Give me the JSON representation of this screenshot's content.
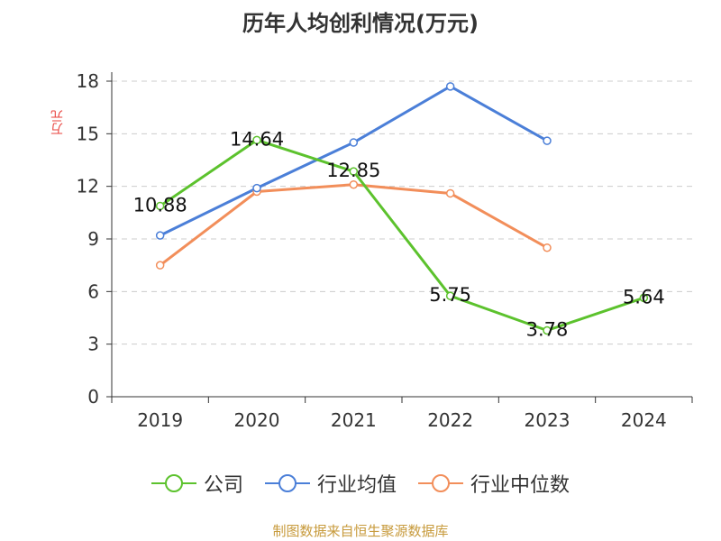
{
  "chart_data": {
    "type": "line",
    "title": "历年人均创利情况(万元)",
    "ylabel": "万元",
    "categories": [
      "2019",
      "2020",
      "2021",
      "2022",
      "2023",
      "2024"
    ],
    "ylim": [
      0,
      18
    ],
    "yticks": [
      0,
      3,
      6,
      9,
      12,
      15,
      18
    ],
    "series": [
      {
        "name": "公司",
        "color": "#5cc22d",
        "values": [
          10.88,
          14.64,
          12.85,
          5.75,
          3.78,
          5.64
        ],
        "labels": [
          "10.88",
          "14.64",
          "12.85",
          "5.75",
          "3.78",
          "5.64"
        ]
      },
      {
        "name": "行业均值",
        "color": "#4b7fd8",
        "values": [
          9.2,
          11.9,
          14.5,
          17.7,
          14.6,
          null
        ]
      },
      {
        "name": "行业中位数",
        "color": "#f28e5a",
        "values": [
          7.5,
          11.7,
          12.1,
          11.6,
          8.5,
          null
        ]
      }
    ]
  },
  "source": "制图数据来自恒生聚源数据库"
}
